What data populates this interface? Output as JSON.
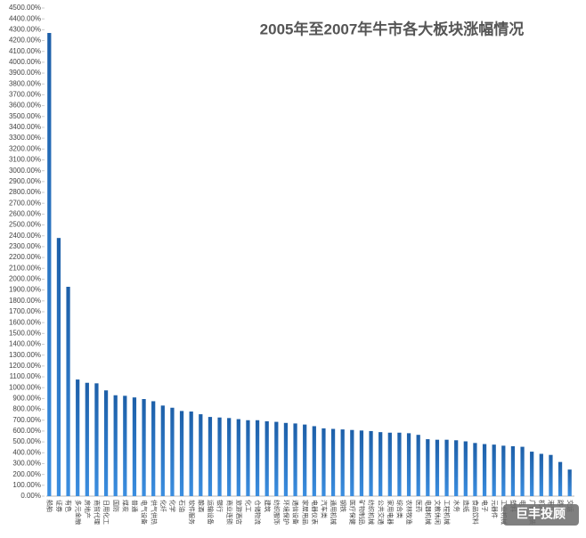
{
  "chart_data": {
    "type": "bar",
    "title": "2005年至2007年牛市各大板块涨幅情况",
    "watermark": "巨丰投顾",
    "color": "#1f6fc0",
    "categories": [
      "船舶",
      "证券",
      "有色",
      "多元金融",
      "房地产",
      "商贸代理",
      "日用化工",
      "国防",
      "煤炭",
      "普通",
      "电气设备",
      "供气供热",
      "化纤",
      "化学",
      "石油",
      "软件服务",
      "酿酒",
      "运输设备",
      "银行",
      "商业连锁",
      "旅游酒店",
      "化工",
      "仓储物流",
      "建筑",
      "纺织服饰",
      "环境保护",
      "通信设备",
      "家居用品",
      "电器仪表",
      "汽车类",
      "通用机械",
      "钢铁",
      "医疗保健",
      "矿物制品",
      "纺织机械",
      "公共交通",
      "家用电器",
      "综合类",
      "农林牧渔",
      "医药",
      "电器机械",
      "文教休闲",
      "工程机械",
      "水务",
      "造纸",
      "食品饮料",
      "电子",
      "元器件",
      "工业机械",
      "塑料",
      "电力",
      "广告包装",
      "机场",
      "港口",
      "路桥",
      "交运"
    ],
    "values": [
      4270,
      2380,
      1930,
      1075,
      1045,
      1040,
      975,
      930,
      925,
      910,
      895,
      875,
      835,
      815,
      785,
      780,
      755,
      730,
      725,
      720,
      710,
      700,
      700,
      690,
      685,
      675,
      670,
      660,
      645,
      625,
      620,
      615,
      610,
      605,
      600,
      590,
      585,
      585,
      580,
      565,
      525,
      520,
      520,
      515,
      505,
      490,
      480,
      475,
      465,
      460,
      455,
      410,
      390,
      380,
      315,
      245
    ],
    "ylim": [
      0,
      4500
    ],
    "yticks": [
      {
        "value": 0,
        "label": "0.00%"
      },
      {
        "value": 100,
        "label": "100.00%"
      },
      {
        "value": 200,
        "label": "200.00%"
      },
      {
        "value": 300,
        "label": "300.00%"
      },
      {
        "value": 400,
        "label": "400.00%"
      },
      {
        "value": 500,
        "label": "500.00%"
      },
      {
        "value": 600,
        "label": "600.00%"
      },
      {
        "value": 700,
        "label": "700.00%"
      },
      {
        "value": 800,
        "label": "800.00%"
      },
      {
        "value": 900,
        "label": "900.00%"
      },
      {
        "value": 1000,
        "label": "1000.00%"
      },
      {
        "value": 1100,
        "label": "1100.00%"
      },
      {
        "value": 1200,
        "label": "1200.00%"
      },
      {
        "value": 1300,
        "label": "1300.00%"
      },
      {
        "value": 1400,
        "label": "1400.00%"
      },
      {
        "value": 1500,
        "label": "1500.00%"
      },
      {
        "value": 1600,
        "label": "1600.00%"
      },
      {
        "value": 1700,
        "label": "1700.00%"
      },
      {
        "value": 1800,
        "label": "1800.00%"
      },
      {
        "value": 1900,
        "label": "1900.00%"
      },
      {
        "value": 2000,
        "label": "2000.00%"
      },
      {
        "value": 2100,
        "label": "2100.00%"
      },
      {
        "value": 2200,
        "label": "2200.00%"
      },
      {
        "value": 2300,
        "label": "2300.00%"
      },
      {
        "value": 2400,
        "label": "2400.00%"
      },
      {
        "value": 2500,
        "label": "2500.00%"
      },
      {
        "value": 2600,
        "label": "2600.00%"
      },
      {
        "value": 2700,
        "label": "2700.00%"
      },
      {
        "value": 2800,
        "label": "2800.00%"
      },
      {
        "value": 2900,
        "label": "2900.00%"
      },
      {
        "value": 3000,
        "label": "3000.00%"
      },
      {
        "value": 3100,
        "label": "3100.00%"
      },
      {
        "value": 3200,
        "label": "3200.00%"
      },
      {
        "value": 3300,
        "label": "3300.00%"
      },
      {
        "value": 3400,
        "label": "3400.00%"
      },
      {
        "value": 3500,
        "label": "3500.00%"
      },
      {
        "value": 3600,
        "label": "3600.00%"
      },
      {
        "value": 3700,
        "label": "3700.00%"
      },
      {
        "value": 3800,
        "label": "3800.00%"
      },
      {
        "value": 3900,
        "label": "3900.00%"
      },
      {
        "value": 4000,
        "label": "4000.00%"
      },
      {
        "value": 4100,
        "label": "4100.00%"
      },
      {
        "value": 4200,
        "label": "4200.00%"
      },
      {
        "value": 4300,
        "label": "4300.00%"
      },
      {
        "value": 4400,
        "label": "4400.00%"
      },
      {
        "value": 4500,
        "label": "4500.00%"
      }
    ],
    "grid": false
  }
}
